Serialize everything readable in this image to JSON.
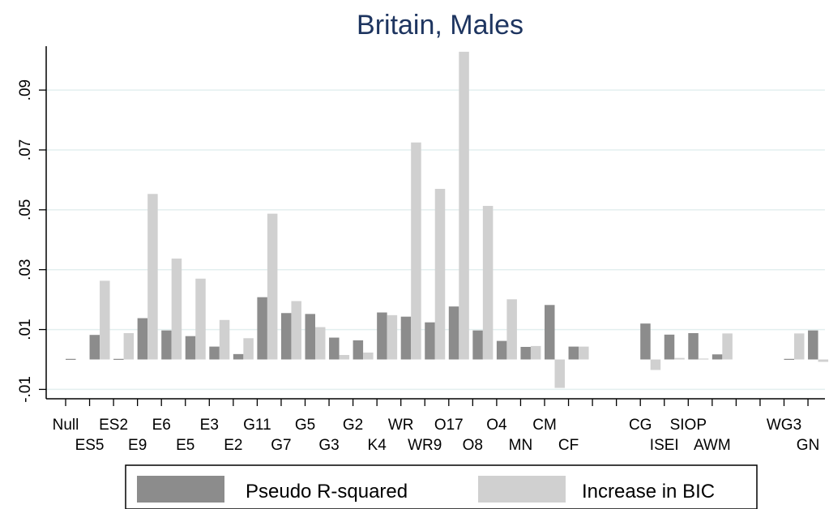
{
  "chart_data": {
    "type": "bar",
    "title": "Britain, Males",
    "xlabel": "",
    "ylabel": "",
    "ylim": [
      -0.0135,
      0.1035
    ],
    "yticks": [
      -0.01,
      0.01,
      0.03,
      0.05,
      0.07,
      0.09
    ],
    "ytick_labels": [
      "-.01",
      ".01",
      ".03",
      ".05",
      ".07",
      ".09"
    ],
    "grid": true,
    "legend_position": "bottom",
    "categories": [
      "Null",
      "ES5",
      "ES2",
      "E9",
      "E6",
      "E5",
      "E3",
      "E2",
      "G11",
      "G7",
      "G5",
      "G3",
      "G2",
      "K4",
      "WR",
      "WR9",
      "O17",
      "O8",
      "O4",
      "MN",
      "CM",
      "CF",
      "",
      "",
      "CG",
      "ISEI",
      "SIOP",
      "AWM",
      "",
      "",
      "WG3",
      "GN"
    ],
    "label_row": [
      1,
      2,
      1,
      2,
      1,
      2,
      1,
      2,
      1,
      2,
      1,
      2,
      1,
      2,
      1,
      2,
      1,
      2,
      1,
      2,
      1,
      2,
      0,
      0,
      1,
      2,
      1,
      2,
      0,
      0,
      1,
      2
    ],
    "series": [
      {
        "name": "Pseudo R-squared",
        "color": "#8c8c8c",
        "values": [
          0.0002,
          0.0082,
          0.0002,
          0.0138,
          0.0097,
          0.0078,
          0.0043,
          0.0018,
          0.0208,
          0.0155,
          0.0152,
          0.0073,
          0.0064,
          0.0157,
          0.0143,
          0.0124,
          0.0177,
          0.0097,
          0.0062,
          0.0042,
          0.0182,
          0.0043,
          null,
          null,
          0.012,
          0.0083,
          0.0088,
          0.0017,
          null,
          null,
          0.0002,
          0.0097
        ]
      },
      {
        "name": "Increase in BIC",
        "color": "#d0d0d0",
        "values": [
          null,
          0.0263,
          0.0088,
          0.0553,
          0.0337,
          0.027,
          0.0132,
          0.0071,
          0.0487,
          0.0195,
          0.0108,
          0.0015,
          0.0023,
          0.0148,
          0.0725,
          0.057,
          0.1028,
          0.0513,
          0.0201,
          0.0045,
          -0.0095,
          0.0043,
          null,
          null,
          -0.0035,
          0.0005,
          0.0003,
          0.0087,
          null,
          null,
          0.0087,
          -0.0008
        ]
      }
    ]
  }
}
